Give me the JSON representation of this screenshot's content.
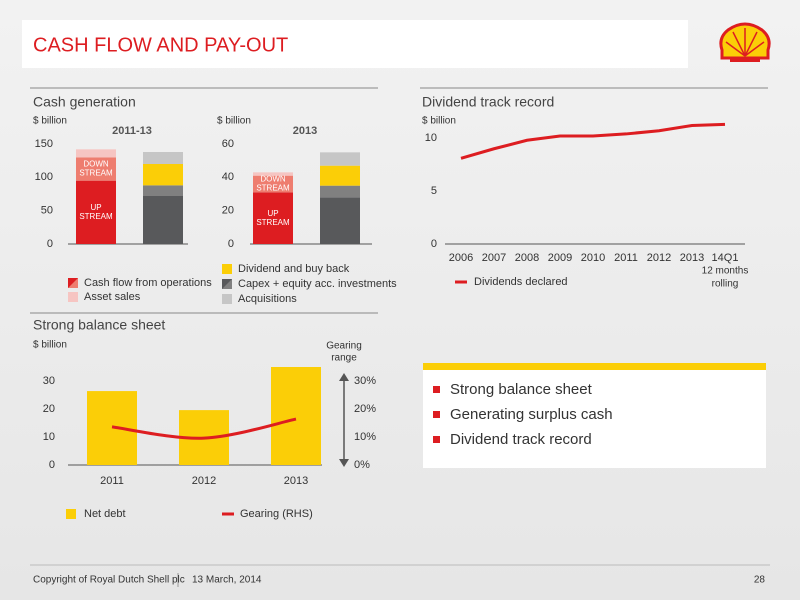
{
  "header": {
    "title": "CASH FLOW AND PAY-OUT"
  },
  "footer": {
    "copyright": "Copyright of Royal Dutch Shell plc",
    "date": "13 March, 2014",
    "page": "28"
  },
  "chart_data": [
    {
      "type": "stacked-bar",
      "section": "Cash generation",
      "unit": "$ billion",
      "title": "2011-13",
      "ylim": [
        0,
        150
      ],
      "yticks": [
        0,
        50,
        100,
        150
      ],
      "series": [
        {
          "color": "#dd1d21",
          "values": [
            95,
            null
          ],
          "label": [
            "UP",
            "STREAM"
          ]
        },
        {
          "color": "#ee7d6f",
          "values": [
            35,
            null
          ],
          "label": [
            "DOWN",
            "STREAM"
          ]
        },
        {
          "color": "#f6c5c2",
          "values": [
            12,
            null
          ]
        },
        {
          "color": "#58595b",
          "values": [
            null,
            72
          ]
        },
        {
          "color": "#808080",
          "values": [
            null,
            16
          ]
        },
        {
          "color": "#fbce07",
          "values": [
            null,
            32
          ]
        },
        {
          "color": "#c6c6c6",
          "values": [
            null,
            18
          ]
        }
      ],
      "legend": [
        {
          "name": "Cash flow from operations",
          "colors": [
            "#dd1d21",
            "#ee7d6f"
          ]
        },
        {
          "name": "Asset sales",
          "colors": [
            "#f6c5c2"
          ]
        },
        {
          "name": "Dividend and buy back",
          "colors": [
            "#fbce07"
          ]
        },
        {
          "name": "Capex + equity acc. investments",
          "colors": [
            "#58595b",
            "#808080"
          ]
        },
        {
          "name": "Acquisitions",
          "colors": [
            "#c6c6c6"
          ]
        }
      ]
    },
    {
      "type": "stacked-bar",
      "unit": "$ billion",
      "title": "2013",
      "ylim": [
        0,
        60
      ],
      "yticks": [
        0,
        20,
        40,
        60
      ],
      "series": [
        {
          "color": "#dd1d21",
          "values": [
            31,
            null
          ],
          "label": [
            "UP",
            "STREAM"
          ]
        },
        {
          "color": "#ee7d6f",
          "values": [
            10,
            null
          ],
          "label": [
            "DOWN",
            "STREAM"
          ]
        },
        {
          "color": "#f6c5c2",
          "values": [
            2,
            null
          ]
        },
        {
          "color": "#58595b",
          "values": [
            null,
            28
          ]
        },
        {
          "color": "#808080",
          "values": [
            null,
            7
          ]
        },
        {
          "color": "#fbce07",
          "values": [
            null,
            12
          ]
        },
        {
          "color": "#c6c6c6",
          "values": [
            null,
            8
          ]
        }
      ]
    },
    {
      "type": "line",
      "section": "Dividend track record",
      "unit": "$ billion",
      "categories": [
        "2006",
        "2007",
        "2008",
        "2009",
        "2010",
        "2011",
        "2012",
        "2013",
        "14Q1"
      ],
      "x_note": [
        "12 months",
        "rolling"
      ],
      "series": [
        {
          "name": "Dividends declared",
          "color": "#dd1d21",
          "values": [
            8.1,
            9.0,
            9.8,
            10.2,
            10.2,
            10.4,
            10.7,
            11.2,
            11.3
          ]
        }
      ],
      "ylim": [
        0,
        12
      ],
      "yticks": [
        0,
        5,
        10
      ]
    },
    {
      "type": "bar-line",
      "section": "Strong balance sheet",
      "unit": "$ billion",
      "y2_title": [
        "Gearing",
        "range"
      ],
      "categories": [
        "2011",
        "2012",
        "2013"
      ],
      "series": [
        {
          "name": "Net debt",
          "color": "#fbce07",
          "values": [
            26.4,
            19.6,
            35
          ]
        },
        {
          "name": "Gearing (RHS)",
          "color": "#dd1d21",
          "values": [
            13.6,
            9.6,
            16.4
          ],
          "axis": "y2"
        }
      ],
      "ylim": [
        0,
        35
      ],
      "yticks": [
        0,
        10,
        20,
        30
      ],
      "y2lim": [
        0,
        35
      ],
      "y2ticks": [
        {
          "value": 0,
          "label": "0%"
        },
        {
          "value": 10,
          "label": "10%"
        },
        {
          "value": 20,
          "label": "20%"
        },
        {
          "value": 30,
          "label": "30%"
        }
      ]
    }
  ],
  "highlights": [
    "Strong balance sheet",
    "Generating surplus cash",
    "Dividend track record"
  ]
}
